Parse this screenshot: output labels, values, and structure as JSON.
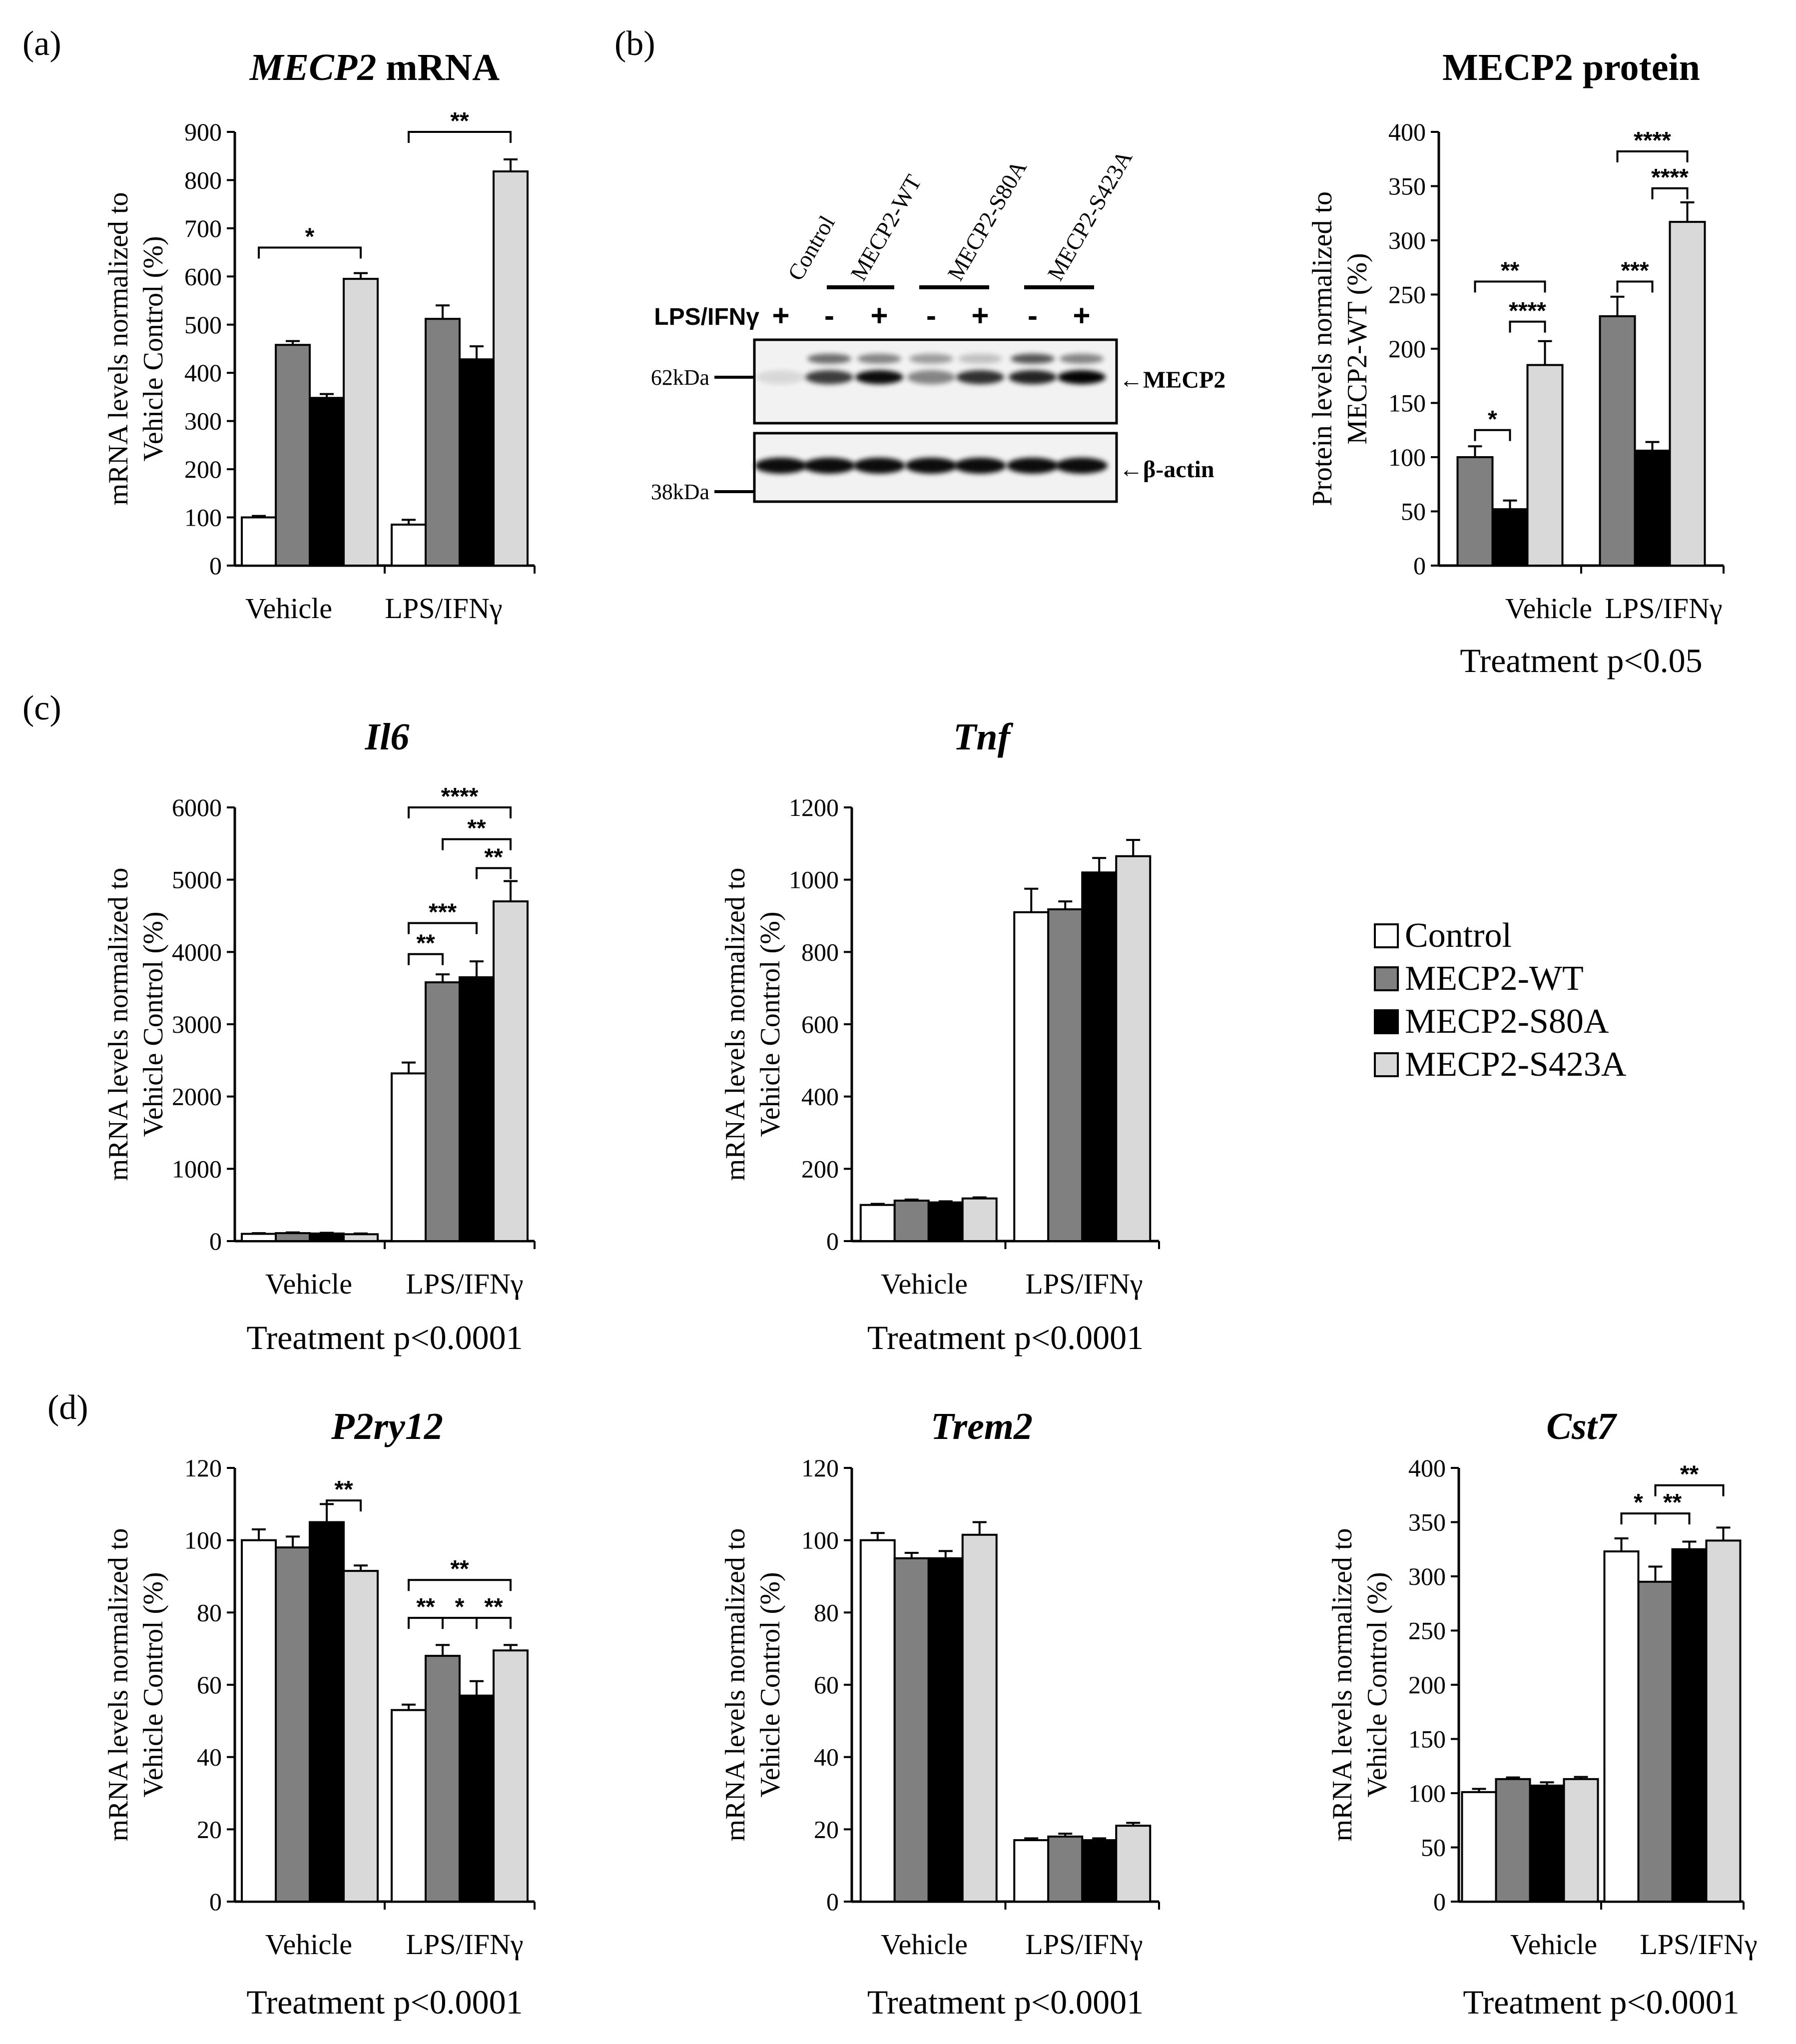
{
  "panels": {
    "a": "(a)",
    "b": "(b)",
    "c": "(c)",
    "d": "(d)"
  },
  "colors": {
    "Control": "#ffffff",
    "MECP2-WT": "#808080",
    "MECP2-S80A": "#000000",
    "MECP2-S423A": "#d9d9d9"
  },
  "legend": [
    "Control",
    "MECP2-WT",
    "MECP2-S80A",
    "MECP2-S423A"
  ],
  "western_blot": {
    "lanes": [
      "Control",
      "MECP2-WT",
      "MECP2-S80A",
      "MECP2-S423A"
    ],
    "lps_label": "LPS/IFNγ",
    "signs": [
      "+",
      "-",
      "+",
      "-",
      "+",
      "-",
      "+"
    ],
    "markers": [
      "62kDa",
      "38kDa"
    ],
    "bands": [
      "←MECP2",
      "←β-actin"
    ]
  },
  "chart_data": [
    {
      "id": "mecp2_mrna",
      "panel": "a",
      "type": "bar",
      "title_italic": "MECP2",
      "title_rest": " mRNA",
      "ylabel": [
        "mRNA levels normalized to",
        "Vehicle Control (%)"
      ],
      "categories": [
        "Vehicle",
        "LPS/IFNγ"
      ],
      "yticks": [
        "0",
        "100",
        "200",
        "300",
        "400",
        "500",
        "600",
        "700",
        "800",
        "900"
      ],
      "ylim": [
        0,
        900
      ],
      "series": [
        {
          "name": "Control",
          "values": [
            100,
            85
          ],
          "errors": [
            3,
            10
          ]
        },
        {
          "name": "MECP2-WT",
          "values": [
            458,
            512
          ],
          "errors": [
            8,
            28
          ]
        },
        {
          "name": "MECP2-S80A",
          "values": [
            348,
            428
          ],
          "errors": [
            8,
            27
          ]
        },
        {
          "name": "MECP2-S423A",
          "values": [
            595,
            818
          ],
          "errors": [
            12,
            25
          ]
        }
      ],
      "sig": [
        {
          "g": 0,
          "a": 0,
          "b": 3,
          "label": "*",
          "y": 660
        },
        {
          "g": 1,
          "a": 0,
          "b": 3,
          "label": "**",
          "y": 900
        }
      ],
      "footer": ""
    },
    {
      "id": "mecp2_protein",
      "panel": "b",
      "type": "bar",
      "title": "MECP2 protein",
      "ylabel": [
        "Protein levels normalized to",
        "MECP2-WT (%)"
      ],
      "categories": [
        "Vehicle",
        "LPS/IFNγ"
      ],
      "yticks": [
        "0",
        "50",
        "100",
        "150",
        "200",
        "250",
        "300",
        "350",
        "400"
      ],
      "ylim": [
        0,
        400
      ],
      "series": [
        {
          "name": "MECP2-WT",
          "values": [
            100,
            230
          ],
          "errors": [
            10,
            18
          ]
        },
        {
          "name": "MECP2-S80A",
          "values": [
            52,
            106
          ],
          "errors": [
            8,
            8
          ]
        },
        {
          "name": "MECP2-S423A",
          "values": [
            185,
            317
          ],
          "errors": [
            22,
            18
          ]
        }
      ],
      "sig": [
        {
          "g": 0,
          "a": 0,
          "b": 1,
          "label": "*",
          "y": 125
        },
        {
          "g": 0,
          "a": 0,
          "b": 2,
          "label": "**",
          "y": 262
        },
        {
          "g": 0,
          "a": 1,
          "b": 2,
          "label": "****",
          "y": 225
        },
        {
          "g": 1,
          "a": 0,
          "b": 1,
          "label": "***",
          "y": 262
        },
        {
          "g": 1,
          "a": 0,
          "b": 2,
          "label": "****",
          "y": 382
        },
        {
          "g": 1,
          "a": 1,
          "b": 2,
          "label": "****",
          "y": 348
        }
      ],
      "footer": "Treatment p<0.05"
    },
    {
      "id": "il6",
      "panel": "c",
      "type": "bar",
      "title_italic": "Il6",
      "ylabel": [
        "mRNA levels normalized to",
        "Vehicle Control (%)"
      ],
      "categories": [
        "Vehicle",
        "LPS/IFNγ"
      ],
      "yticks": [
        "0",
        "1000",
        "2000",
        "3000",
        "4000",
        "5000",
        "6000"
      ],
      "ylim": [
        0,
        6000
      ],
      "series": [
        {
          "name": "Control",
          "values": [
            100,
            2320
          ],
          "errors": [
            10,
            150
          ]
        },
        {
          "name": "MECP2-WT",
          "values": [
            110,
            3580
          ],
          "errors": [
            10,
            110
          ]
        },
        {
          "name": "MECP2-S80A",
          "values": [
            105,
            3650
          ],
          "errors": [
            10,
            220
          ]
        },
        {
          "name": "MECP2-S423A",
          "values": [
            95,
            4700
          ],
          "errors": [
            10,
            280
          ]
        }
      ],
      "sig": [
        {
          "g": 1,
          "a": 0,
          "b": 1,
          "label": "**",
          "y": 3970
        },
        {
          "g": 1,
          "a": 0,
          "b": 2,
          "label": "***",
          "y": 4400
        },
        {
          "g": 1,
          "a": 2,
          "b": 3,
          "label": "**",
          "y": 5160
        },
        {
          "g": 1,
          "a": 1,
          "b": 3,
          "label": "**",
          "y": 5560
        },
        {
          "g": 1,
          "a": 0,
          "b": 3,
          "label": "****",
          "y": 6000
        }
      ],
      "footer": "Treatment p<0.0001"
    },
    {
      "id": "tnf",
      "panel": "c",
      "type": "bar",
      "title_italic": "Tnf",
      "ylabel": [
        "mRNA levels normalized to",
        "Vehicle Control (%)"
      ],
      "categories": [
        "Vehicle",
        "LPS/IFNγ"
      ],
      "yticks": [
        "0",
        "200",
        "400",
        "600",
        "800",
        "1000",
        "1200"
      ],
      "ylim": [
        0,
        1200
      ],
      "series": [
        {
          "name": "Control",
          "values": [
            100,
            910
          ],
          "errors": [
            3,
            65
          ]
        },
        {
          "name": "MECP2-WT",
          "values": [
            112,
            918
          ],
          "errors": [
            3,
            22
          ]
        },
        {
          "name": "MECP2-S80A",
          "values": [
            107,
            1020
          ],
          "errors": [
            3,
            40
          ]
        },
        {
          "name": "MECP2-S423A",
          "values": [
            118,
            1065
          ],
          "errors": [
            3,
            45
          ]
        }
      ],
      "sig": [],
      "footer": "Treatment p<0.0001"
    },
    {
      "id": "p2ry12",
      "panel": "d",
      "type": "bar",
      "title_italic": "P2ry12",
      "ylabel": [
        "mRNA levels normalized to",
        "Vehicle Control (%)"
      ],
      "categories": [
        "Vehicle",
        "LPS/IFNγ"
      ],
      "yticks": [
        "0",
        "20",
        "40",
        "60",
        "80",
        "100",
        "120"
      ],
      "ylim": [
        0,
        120
      ],
      "series": [
        {
          "name": "Control",
          "values": [
            100,
            53
          ],
          "errors": [
            3,
            1.5
          ]
        },
        {
          "name": "MECP2-WT",
          "values": [
            98,
            68
          ],
          "errors": [
            3,
            3
          ]
        },
        {
          "name": "MECP2-S80A",
          "values": [
            105,
            57
          ],
          "errors": [
            5,
            4
          ]
        },
        {
          "name": "MECP2-S423A",
          "values": [
            91.5,
            69.5
          ],
          "errors": [
            1.5,
            1.5
          ]
        }
      ],
      "sig": [
        {
          "g": 0,
          "a": 2,
          "b": 3,
          "label": "**",
          "y": 111
        },
        {
          "g": 1,
          "a": 0,
          "b": 1,
          "label": "**",
          "y": 78.5
        },
        {
          "g": 1,
          "a": 1,
          "b": 2,
          "label": "*",
          "y": 78.5
        },
        {
          "g": 1,
          "a": 2,
          "b": 3,
          "label": "**",
          "y": 78.5
        },
        {
          "g": 1,
          "a": 0,
          "b": 3,
          "label": "**",
          "y": 89
        }
      ],
      "footer": "Treatment p<0.0001"
    },
    {
      "id": "trem2",
      "panel": "d",
      "type": "bar",
      "title_italic": "Trem2",
      "ylabel": [
        "mRNA levels normalized to",
        "Vehicle Control (%)"
      ],
      "categories": [
        "Vehicle",
        "LPS/IFNγ"
      ],
      "yticks": [
        "0",
        "20",
        "40",
        "60",
        "80",
        "100",
        "120"
      ],
      "ylim": [
        0,
        120
      ],
      "series": [
        {
          "name": "Control",
          "values": [
            100,
            17
          ],
          "errors": [
            2,
            0.5
          ]
        },
        {
          "name": "MECP2-WT",
          "values": [
            95,
            18
          ],
          "errors": [
            1.5,
            0.8
          ]
        },
        {
          "name": "MECP2-S80A",
          "values": [
            95,
            17
          ],
          "errors": [
            2,
            0.5
          ]
        },
        {
          "name": "MECP2-S423A",
          "values": [
            101.5,
            21
          ],
          "errors": [
            3.5,
            0.8
          ]
        }
      ],
      "sig": [],
      "footer": "Treatment p<0.0001"
    },
    {
      "id": "cst7",
      "panel": "d",
      "type": "bar",
      "title_italic": "Cst7",
      "ylabel": [
        "mRNA levels normalized to",
        "Vehicle Control (%)"
      ],
      "categories": [
        "Vehicle",
        "LPS/IFNγ"
      ],
      "yticks": [
        "0",
        "50",
        "100",
        "150",
        "200",
        "250",
        "300",
        "350",
        "400"
      ],
      "ylim": [
        0,
        400
      ],
      "series": [
        {
          "name": "Control",
          "values": [
            101,
            323
          ],
          "errors": [
            3,
            12
          ]
        },
        {
          "name": "MECP2-WT",
          "values": [
            113,
            295
          ],
          "errors": [
            1.5,
            14
          ]
        },
        {
          "name": "MECP2-S80A",
          "values": [
            107,
            325
          ],
          "errors": [
            3,
            7
          ]
        },
        {
          "name": "MECP2-S423A",
          "values": [
            113,
            333
          ],
          "errors": [
            2,
            12
          ]
        }
      ],
      "sig": [
        {
          "g": 1,
          "a": 0,
          "b": 1,
          "label": "*",
          "y": 358
        },
        {
          "g": 1,
          "a": 1,
          "b": 2,
          "label": "**",
          "y": 358
        },
        {
          "g": 1,
          "a": 1,
          "b": 3,
          "label": "**",
          "y": 384
        }
      ],
      "footer": "Treatment p<0.0001"
    }
  ]
}
